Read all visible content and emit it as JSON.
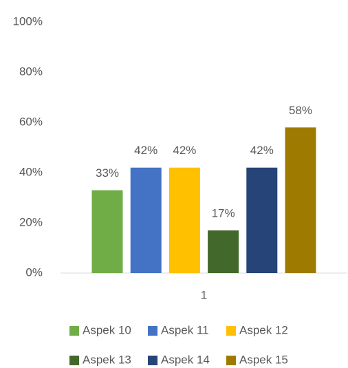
{
  "chart_data": {
    "type": "bar",
    "categories": [
      "1"
    ],
    "series": [
      {
        "name": "Aspek 10",
        "color": "#70ad47",
        "values": [
          33
        ],
        "value_labels": [
          "33%"
        ]
      },
      {
        "name": "Aspek 11",
        "color": "#4472c4",
        "values": [
          42
        ],
        "value_labels": [
          "42%"
        ]
      },
      {
        "name": "Aspek 12",
        "color": "#ffc000",
        "values": [
          42
        ],
        "value_labels": [
          "42%"
        ]
      },
      {
        "name": "Aspek 13",
        "color": "#43682b",
        "values": [
          17
        ],
        "value_labels": [
          "17%"
        ]
      },
      {
        "name": "Aspek 14",
        "color": "#264478",
        "values": [
          42
        ],
        "value_labels": [
          "42%"
        ]
      },
      {
        "name": "Aspek 15",
        "color": "#9e7b00",
        "values": [
          58
        ],
        "value_labels": [
          "58%"
        ]
      }
    ],
    "ylim": [
      0,
      100
    ],
    "yticks": [
      {
        "value": 0,
        "label": "0%"
      },
      {
        "value": 20,
        "label": "20%"
      },
      {
        "value": 40,
        "label": "40%"
      },
      {
        "value": 60,
        "label": "60%"
      },
      {
        "value": 80,
        "label": "80%"
      },
      {
        "value": 100,
        "label": "100%"
      }
    ],
    "grid": false,
    "legend": "bottom"
  }
}
